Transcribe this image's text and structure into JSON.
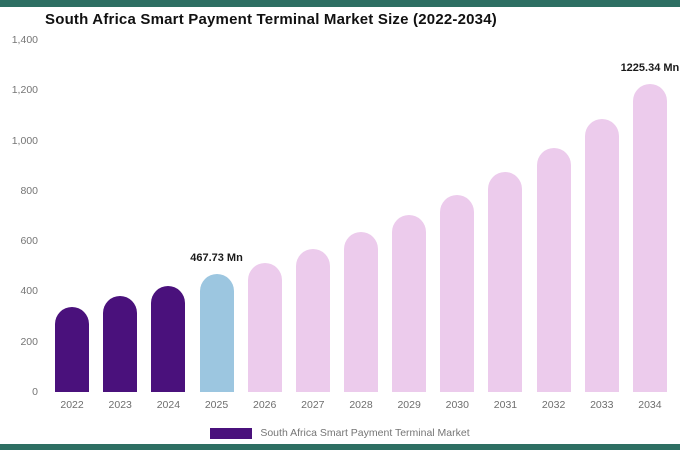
{
  "frame_color": "#2e6f63",
  "chart_data": {
    "type": "bar",
    "title": "South Africa Smart Payment Terminal Market Size (2022-2034)",
    "categories": [
      "2022",
      "2023",
      "2024",
      "2025",
      "2026",
      "2027",
      "2028",
      "2029",
      "2030",
      "2031",
      "2032",
      "2033",
      "2034"
    ],
    "values": [
      340,
      380,
      420,
      467.73,
      515,
      570,
      635,
      705,
      785,
      875,
      970,
      1085,
      1225.34
    ],
    "xlabel": "",
    "ylabel": "",
    "ylim": [
      0,
      1400
    ],
    "yticks": [
      0,
      200,
      400,
      600,
      800,
      1000,
      1200,
      1400
    ],
    "ytick_labels": [
      "0",
      "200",
      "400",
      "600",
      "800",
      "1,000",
      "1,200",
      "1,400"
    ],
    "grid": false,
    "legend_position": "bottom",
    "bar_colors": {
      "historical": "#4a117c",
      "current": "#9cc6e0",
      "forecast": "#eccbec"
    },
    "color_assignment": [
      "historical",
      "historical",
      "historical",
      "current",
      "forecast",
      "forecast",
      "forecast",
      "forecast",
      "forecast",
      "forecast",
      "forecast",
      "forecast",
      "forecast"
    ],
    "data_labels": [
      {
        "category": "2025",
        "text": "467.73 Mn"
      },
      {
        "category": "2034",
        "text": "1225.34 Mn"
      }
    ]
  },
  "legend": {
    "label": "South Africa Smart Payment Terminal Market",
    "swatch_color": "#4a117c"
  }
}
